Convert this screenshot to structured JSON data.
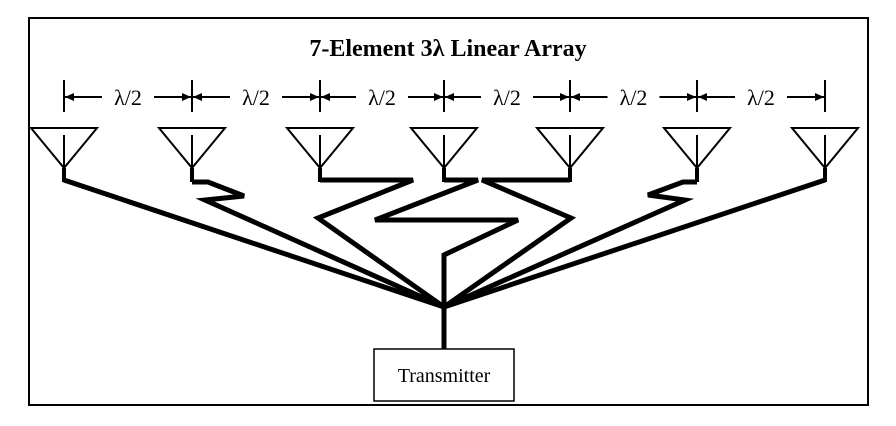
{
  "title": "7-Element 3λ Linear Array",
  "spacing_labels": [
    "λ/2",
    "λ/2",
    "λ/2",
    "λ/2",
    "λ/2",
    "λ/2"
  ],
  "element_count": 7,
  "transmitter": {
    "label": "Transmitter"
  },
  "icons": {
    "antenna": "antenna-icon",
    "arrow": "arrowhead-icon"
  },
  "colors": {
    "line": "#000000",
    "background": "#ffffff"
  }
}
